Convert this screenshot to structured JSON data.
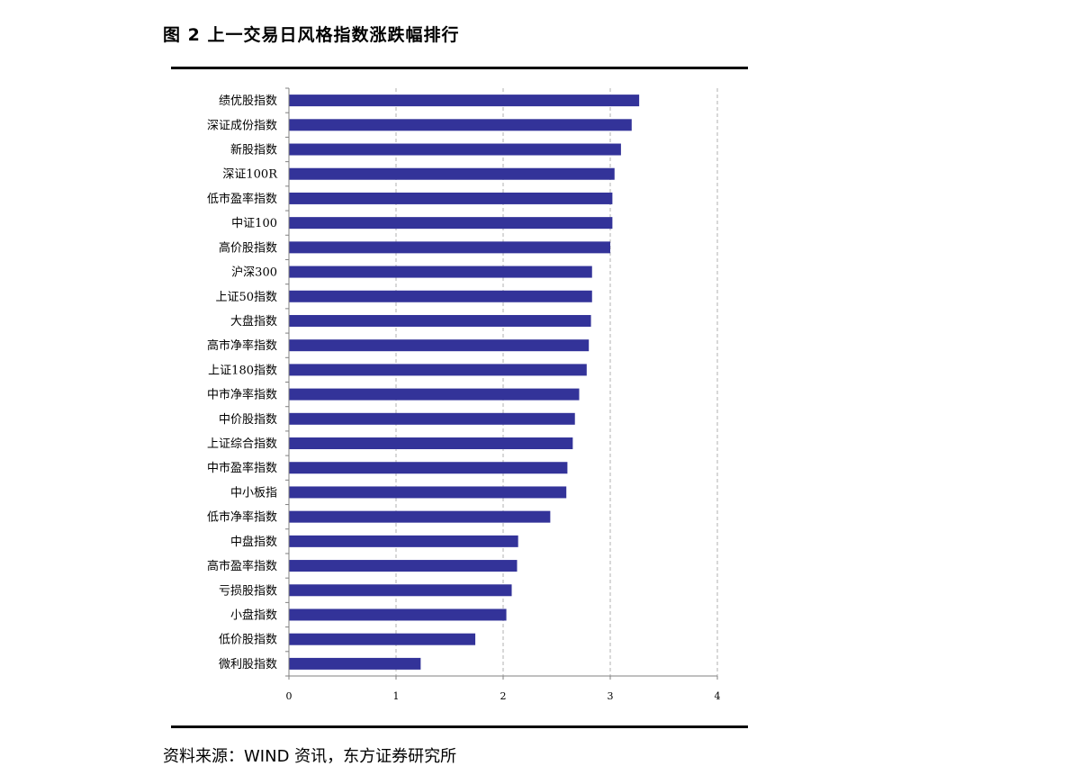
{
  "figure": {
    "title": "图 2  上一交易日风格指数涨跌幅排行",
    "source": "资料来源：WIND 资讯，东方证券研究所"
  },
  "colors": {
    "bar": "#333399",
    "grid": "#b0b0b0",
    "axis": "#808080",
    "rule": "#000000"
  },
  "chart_data": {
    "type": "bar",
    "orientation": "horizontal",
    "title": "",
    "xlabel": "",
    "ylabel": "",
    "xlim": [
      0,
      4
    ],
    "xticks": [
      0,
      1,
      2,
      3,
      4
    ],
    "grid": "vertical dashed",
    "legend": "none",
    "categories": [
      "绩优股指数",
      "深证成份指数",
      "新股指数",
      "深证100R",
      "低市盈率指数",
      "中证100",
      "高价股指数",
      "沪深300",
      "上证50指数",
      "大盘指数",
      "高市净率指数",
      "上证180指数",
      "中市净率指数",
      "中价股指数",
      "上证综合指数",
      "中市盈率指数",
      "中小板指",
      "低市净率指数",
      "中盘指数",
      "高市盈率指数",
      "亏损股指数",
      "小盘指数",
      "低价股指数",
      "微利股指数"
    ],
    "values": [
      3.27,
      3.2,
      3.1,
      3.04,
      3.02,
      3.02,
      3.0,
      2.83,
      2.83,
      2.82,
      2.8,
      2.78,
      2.71,
      2.67,
      2.65,
      2.6,
      2.59,
      2.44,
      2.14,
      2.13,
      2.08,
      2.03,
      1.74,
      1.23
    ]
  }
}
